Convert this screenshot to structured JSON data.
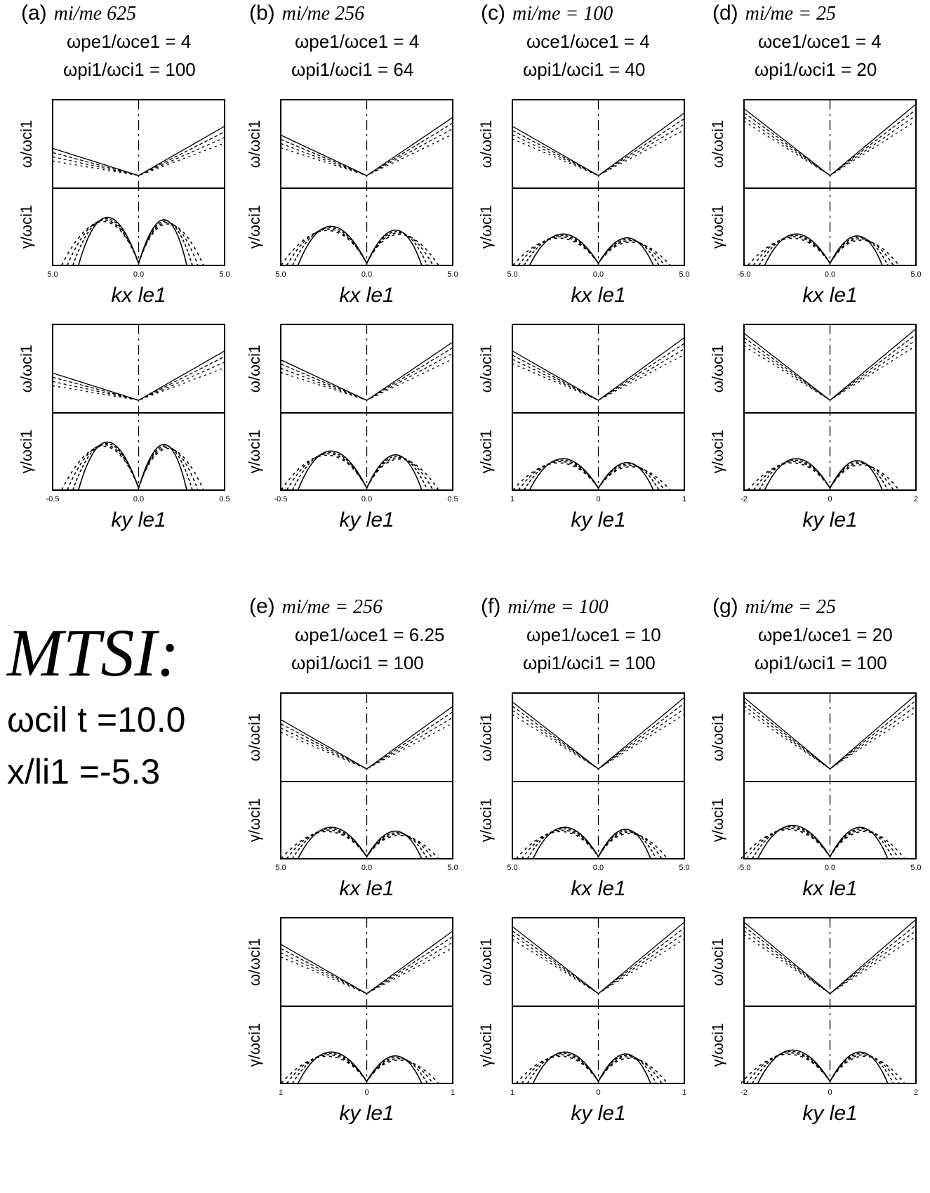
{
  "summary": {
    "title": "MTSI:",
    "line1": "ωcil t =10.0",
    "line2": "x/li1 =-5.3"
  },
  "panels": [
    {
      "label": "(a)",
      "h1": "mi/me  625",
      "h2": "ωpe1/ωce1 = 4",
      "h3": "ωpi1/ωci1 = 100",
      "row": 0,
      "col": 0,
      "xplot": {
        "xlabel": "kx le1",
        "xticks": [
          "5.0",
          "0.0",
          "5.0"
        ],
        "omega_label": "ω/ωci1",
        "gamma_label": "γ/ωci1"
      },
      "yplot": {
        "xlabel": "ky le1",
        "xticks": [
          "-0.5",
          "0.0",
          "0.5"
        ],
        "omega_label": "ω/ωci1",
        "gamma_label": "γ/ωci1"
      }
    },
    {
      "label": "(b)",
      "h1": "mi/me  256",
      "h2": "ωpe1/ωce1 = 4",
      "h3": "ωpi1/ωci1 = 64",
      "row": 0,
      "col": 1,
      "xplot": {
        "xlabel": "kx le1",
        "xticks": [
          "5.0",
          "0.0",
          "5.0"
        ],
        "omega_label": "ω/ωci1",
        "gamma_label": "γ/ωci1"
      },
      "yplot": {
        "xlabel": "ky le1",
        "xticks": [
          "-0.5",
          "0.0",
          "0.5"
        ],
        "omega_label": "ω/ωci1",
        "gamma_label": "γ/ωci1"
      }
    },
    {
      "label": "(c)",
      "h1": "mi/me = 100",
      "h2": "ωce1/ωce1 = 4",
      "h3": "ωpi1/ωci1 = 40",
      "row": 0,
      "col": 2,
      "xplot": {
        "xlabel": "kx le1",
        "xticks": [
          "5.0",
          "0.0",
          "5.0"
        ],
        "omega_label": "ω/ωci1",
        "gamma_label": "γ/ωci1"
      },
      "yplot": {
        "xlabel": "ky le1",
        "xticks": [
          "1",
          "0",
          "1"
        ],
        "omega_label": "ω/ωci1",
        "gamma_label": "γ/ωci1"
      }
    },
    {
      "label": "(d)",
      "h1": "mi/me = 25",
      "h2": "ωce1/ωce1 = 4",
      "h3": "ωpi1/ωci1 = 20",
      "row": 0,
      "col": 3,
      "xplot": {
        "xlabel": "kx le1",
        "xticks": [
          "-5.0",
          "0.0",
          "5.0"
        ],
        "omega_label": "ω/ωci1",
        "gamma_label": "γ/ωci1"
      },
      "yplot": {
        "xlabel": "ky le1",
        "xticks": [
          "-2",
          "0",
          "2"
        ],
        "omega_label": "ω/ωci1",
        "gamma_label": "γ/ωci1"
      }
    },
    {
      "label": "(e)",
      "h1": "mi/me = 256",
      "h2": "ωpe1/ωce1 = 6.25",
      "h3": "ωpi1/ωci1 = 100",
      "row": 1,
      "col": 1,
      "xplot": {
        "xlabel": "kx le1",
        "xticks": [
          "5.0",
          "0.0",
          "5.0"
        ],
        "omega_label": "ω/ωci1",
        "gamma_label": "γ/ωci1"
      },
      "yplot": {
        "xlabel": "ky le1",
        "xticks": [
          "1",
          "0",
          "1"
        ],
        "omega_label": "ω/ωci1",
        "gamma_label": "γ/ωci1"
      }
    },
    {
      "label": "(f)",
      "h1": "mi/me = 100",
      "h2": "ωpe1/ωce1 = 10",
      "h3": "ωpi1/ωci1 = 100",
      "row": 1,
      "col": 2,
      "xplot": {
        "xlabel": "kx le1",
        "xticks": [
          "5.0",
          "0.0",
          "5.0"
        ],
        "omega_label": "ω/ωci1",
        "gamma_label": "γ/ωci1"
      },
      "yplot": {
        "xlabel": "ky le1",
        "xticks": [
          "1",
          "0",
          "1"
        ],
        "omega_label": "ω/ωci1",
        "gamma_label": "γ/ωci1"
      }
    },
    {
      "label": "(g)",
      "h1": "mi/me = 25",
      "h2": "ωpe1/ωce1 = 20",
      "h3": "ωpi1/ωci1 = 100",
      "row": 1,
      "col": 3,
      "xplot": {
        "xlabel": "kx le1",
        "xticks": [
          "-5.0",
          "0.0",
          "5.0"
        ],
        "omega_label": "ω/ωci1",
        "gamma_label": "γ/ωci1"
      },
      "yplot": {
        "xlabel": "ky le1",
        "xticks": [
          "-2",
          "0",
          "2"
        ],
        "omega_label": "ω/ωci1",
        "gamma_label": "γ/ωci1"
      }
    }
  ],
  "chart_data": [
    {
      "type": "line",
      "panel": "a",
      "x": [
        -5,
        -2.5,
        0,
        2.5,
        5
      ],
      "series": [
        {
          "values": [
            0.6,
            0.35,
            0.08,
            0.38,
            0.7
          ]
        }
      ],
      "xlabel": "kx le1",
      "ylabel": "ω/ωci1"
    },
    {
      "type": "line",
      "panel": "a",
      "x": [
        -3,
        -2,
        -1,
        0,
        1,
        2,
        3
      ],
      "series": [
        {
          "values": [
            0,
            10,
            5,
            0,
            5,
            10,
            0
          ]
        }
      ],
      "xlabel": "kx le1",
      "ylabel": "γ/ωci1"
    },
    {
      "type": "line",
      "panel": "b",
      "x": [
        -5,
        -2.5,
        0,
        2.5,
        5
      ],
      "series": [
        {
          "values": [
            0.8,
            0.45,
            0.06,
            0.45,
            0.8
          ]
        }
      ],
      "xlabel": "kx le1",
      "ylabel": "ω/ωci1"
    },
    {
      "type": "line",
      "panel": "b",
      "x": [
        -4,
        -2.5,
        0,
        2,
        4
      ],
      "series": [
        {
          "values": [
            0,
            12,
            0,
            8,
            0
          ]
        }
      ],
      "xlabel": "kx le1",
      "ylabel": "γ/ωci1"
    },
    {
      "type": "line",
      "panel": "c",
      "x": [
        -5,
        0,
        5
      ],
      "series": [
        {
          "values": [
            1,
            0.06,
            1
          ]
        }
      ],
      "xlabel": "kx le1",
      "ylabel": "ω/ωci1"
    },
    {
      "type": "line",
      "panel": "c",
      "x": [
        -4,
        -2,
        0,
        2,
        4
      ],
      "series": [
        {
          "values": [
            0,
            6,
            0,
            4,
            0
          ]
        }
      ],
      "xlabel": "kx le1",
      "ylabel": "γ/ωci1"
    },
    {
      "type": "line",
      "panel": "d",
      "x": [
        -2.5,
        0,
        2.5
      ],
      "series": [
        {
          "values": [
            1,
            0.06,
            1
          ]
        }
      ],
      "xlabel": "kx le1",
      "ylabel": "ω/ωci1"
    },
    {
      "type": "line",
      "panel": "d",
      "x": [
        -2.5,
        -1.5,
        0,
        1.5,
        2.5
      ],
      "series": [
        {
          "values": [
            0,
            3.5,
            0,
            3.5,
            0
          ]
        }
      ],
      "xlabel": "kx le1",
      "ylabel": "γ/ωci1"
    }
  ]
}
